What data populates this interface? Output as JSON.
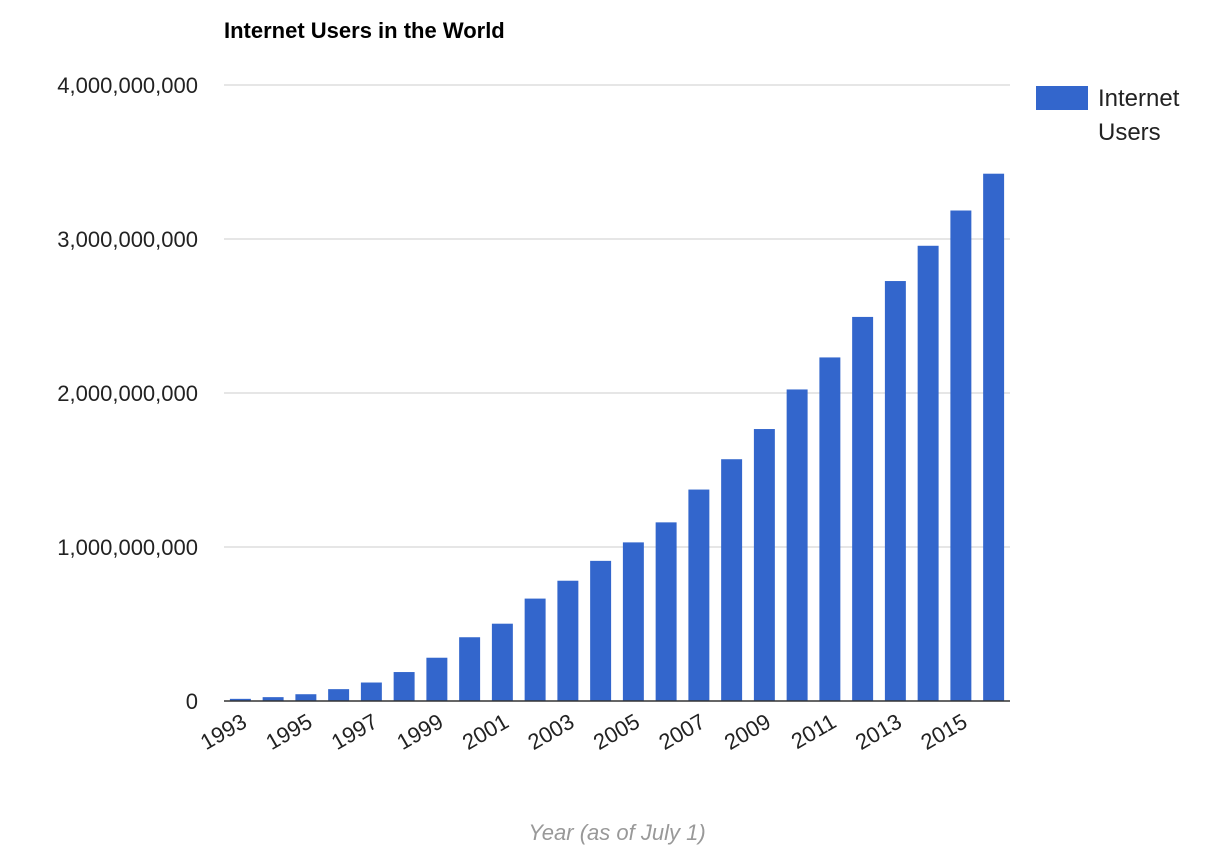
{
  "chart_data": {
    "type": "bar",
    "title": "Internet Users in the World",
    "xlabel": "Year (as of July 1)",
    "ylabel": "",
    "ylim": [
      0,
      4000000000
    ],
    "yticks": [
      "0",
      "1,000,000,000",
      "2,000,000,000",
      "3,000,000,000",
      "4,000,000,000"
    ],
    "ytick_values": [
      0,
      1000000000,
      2000000000,
      3000000000,
      4000000000
    ],
    "grid": true,
    "legend_position": "right",
    "color": "#3366cc",
    "categories": [
      "1993",
      "1994",
      "1995",
      "1996",
      "1997",
      "1998",
      "1999",
      "2000",
      "2001",
      "2002",
      "2003",
      "2004",
      "2005",
      "2006",
      "2007",
      "2008",
      "2009",
      "2010",
      "2011",
      "2012",
      "2013",
      "2014",
      "2015",
      "2016"
    ],
    "xtick_labels": [
      "1993",
      "1995",
      "1997",
      "1999",
      "2001",
      "2003",
      "2005",
      "2007",
      "2009",
      "2011",
      "2013",
      "2015"
    ],
    "series": [
      {
        "name": "Internet Users",
        "legend_lines": [
          "Internet",
          "Users"
        ],
        "values": [
          14000000,
          25000000,
          44000000,
          77000000,
          120000000,
          188000000,
          281000000,
          414000000,
          502000000,
          665000000,
          781000000,
          910000000,
          1030000000,
          1160000000,
          1373000000,
          1570000000,
          1766000000,
          2023000000,
          2231000000,
          2494000000,
          2727000000,
          2956000000,
          3185000000,
          3424000000
        ]
      }
    ]
  }
}
